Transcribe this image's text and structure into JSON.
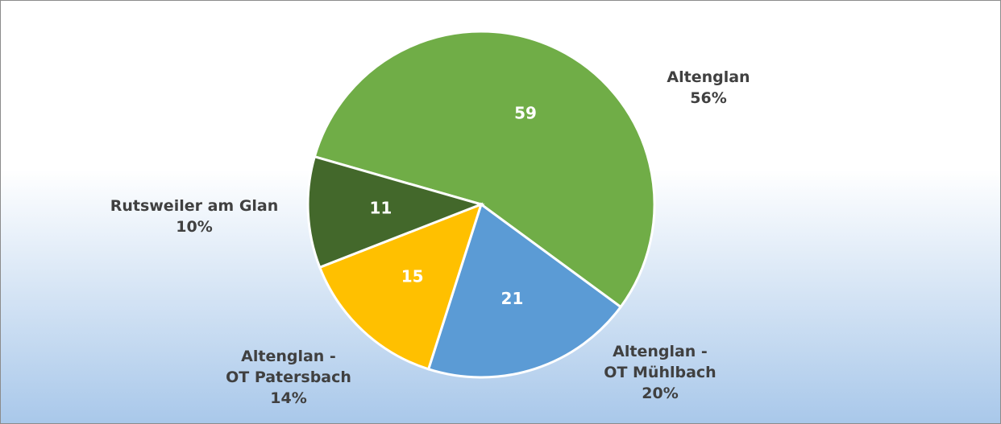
{
  "chart_data": {
    "type": "pie",
    "categories": [
      "Altenglan",
      "Altenglan -\nOT Mühlbach",
      "Altenglan -\nOT Patersbach",
      "Rutsweiler am Glan"
    ],
    "values": [
      59,
      21,
      15,
      11
    ],
    "percent_labels": [
      "56%",
      "20%",
      "14%",
      "10%"
    ],
    "colors": [
      "#70ad47",
      "#5b9bd5",
      "#ffc000",
      "#43682b"
    ]
  }
}
